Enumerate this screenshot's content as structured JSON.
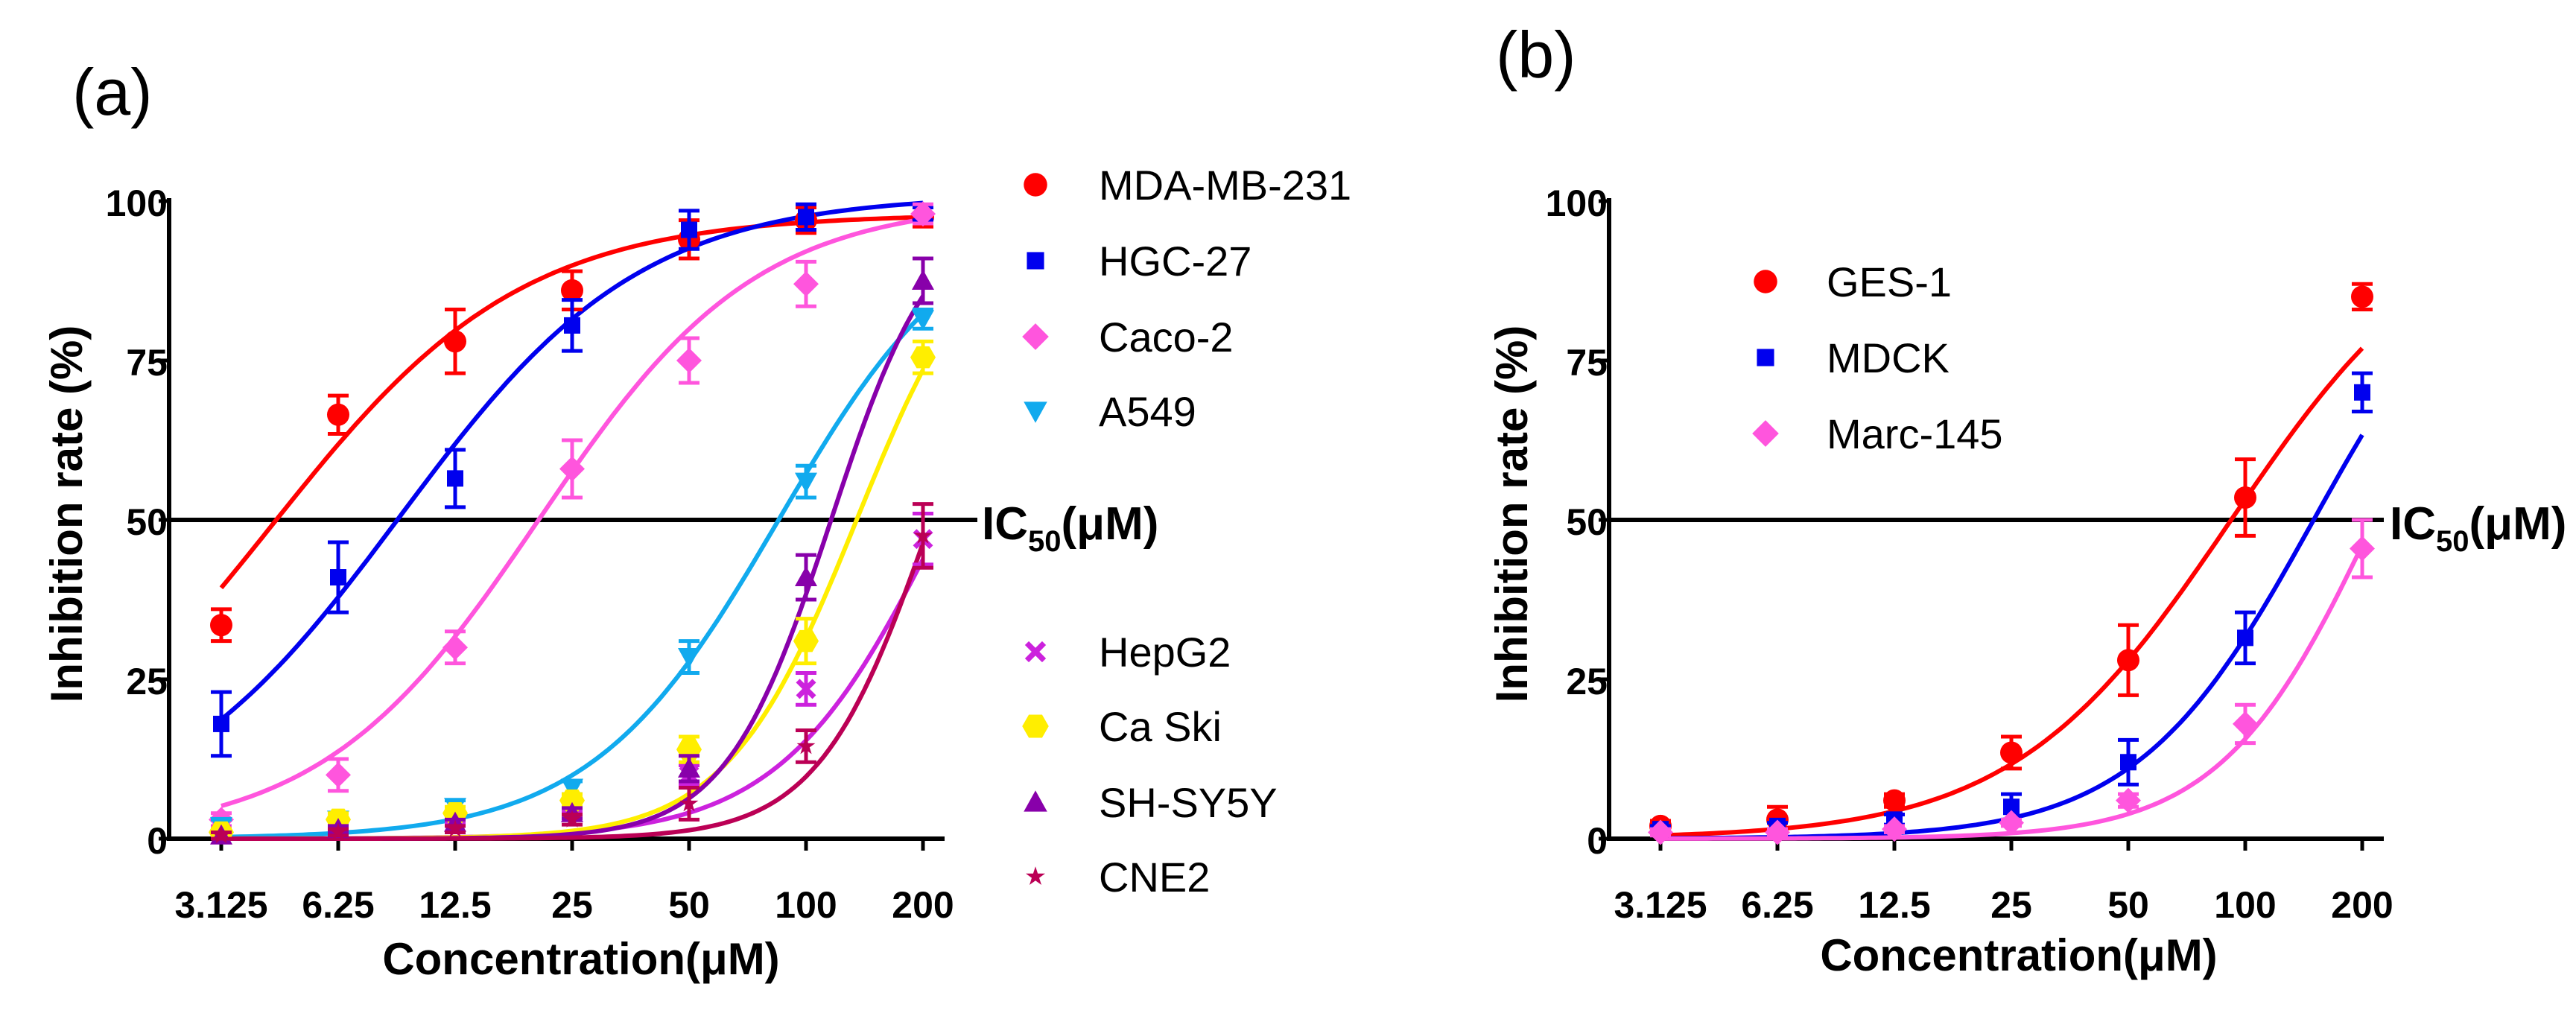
{
  "figure": {
    "ic50_prefix": "IC",
    "ic50_subscript": "50",
    "ic50_suffix": "(μM)"
  },
  "chart_data": [
    {
      "type": "line",
      "panel_label": "(a)",
      "xlabel": "Concentration(μM)",
      "ylabel": "Inhibition rate (%)",
      "x_scale": "log2",
      "categories": [
        "3.125",
        "6.25",
        "12.5",
        "25",
        "50",
        "100",
        "200"
      ],
      "x": [
        3.125,
        6.25,
        12.5,
        25,
        50,
        100,
        200
      ],
      "ylim": [
        0,
        100
      ],
      "yticks": [
        "0",
        "25",
        "50",
        "75",
        "100"
      ],
      "reference_line_y": 50,
      "series": [
        {
          "name": "MDA-MB-231",
          "color": "#ff0000",
          "marker": "circle",
          "values": [
            33.5,
            66.5,
            78,
            86,
            94,
            97,
            97.5
          ],
          "errors": [
            2.5,
            3,
            5,
            3,
            3,
            2,
            1.5
          ]
        },
        {
          "name": "HGC-27",
          "color": "#0000ee",
          "marker": "square",
          "values": [
            18,
            41,
            56.5,
            80.5,
            95.5,
            97.5,
            98
          ],
          "errors": [
            5,
            5.5,
            4.5,
            4,
            3,
            2,
            1
          ]
        },
        {
          "name": "Caco-2",
          "color": "#ff55dd",
          "marker": "diamond",
          "values": [
            3,
            10,
            30,
            58,
            75,
            87,
            98
          ],
          "errors": [
            1,
            2.5,
            2.5,
            4.5,
            3.5,
            3.5,
            1.5
          ]
        },
        {
          "name": "A549",
          "color": "#11aaee",
          "marker": "triangle-down",
          "values": [
            2,
            3,
            5,
            8,
            28.5,
            56,
            81.5
          ],
          "errors": [
            1,
            1,
            1,
            1,
            2.5,
            2.5,
            1.5
          ]
        },
        {
          "name": "HepG2",
          "color": "#cc22dd",
          "marker": "x",
          "values": [
            1,
            2,
            3,
            5,
            10,
            23.5,
            47
          ],
          "errors": [
            0.5,
            0.5,
            0.5,
            0.8,
            1.5,
            2.5,
            4
          ]
        },
        {
          "name": "Ca Ski",
          "color": "#ffee00",
          "marker": "hexagon",
          "values": [
            1,
            3,
            4,
            6,
            14,
            31,
            75.5
          ],
          "errors": [
            0.5,
            1,
            1,
            1,
            2,
            3.5,
            2.5
          ]
        },
        {
          "name": "SH-SY5Y",
          "color": "#8800aa",
          "marker": "triangle-up",
          "values": [
            0.5,
            1.5,
            2.5,
            4,
            11,
            41,
            87.5
          ],
          "errors": [
            0.5,
            0.5,
            0.5,
            0.8,
            2,
            3.5,
            3.5
          ]
        },
        {
          "name": "CNE2",
          "color": "#bb0055",
          "marker": "star",
          "values": [
            0.5,
            1,
            1.5,
            3,
            5.5,
            14.5,
            47.5
          ],
          "errors": [
            0.5,
            0.5,
            0.5,
            0.8,
            2.5,
            2.5,
            5
          ]
        }
      ],
      "fits": [
        {
          "name": "MDA-MB-231",
          "color": "#ff0000",
          "top": 98,
          "ec50": 4.2,
          "hill": 1.35
        },
        {
          "name": "HGC-27",
          "color": "#0000ee",
          "top": 101,
          "ec50": 9.0,
          "hill": 1.4
        },
        {
          "name": "Caco-2",
          "color": "#ff55dd",
          "top": 100,
          "ec50": 20.5,
          "hill": 1.55
        },
        {
          "name": "A549",
          "color": "#11aaee",
          "top": 100,
          "ec50": 85,
          "hill": 1.8
        },
        {
          "name": "HepG2",
          "color": "#cc22dd",
          "top": 100,
          "ec50": 225,
          "hill": 2.1
        },
        {
          "name": "Ca Ski",
          "color": "#ffee00",
          "top": 100,
          "ec50": 135,
          "hill": 2.6
        },
        {
          "name": "SH-SY5Y",
          "color": "#8800aa",
          "top": 100,
          "ec50": 116,
          "hill": 3.2
        },
        {
          "name": "CNE2",
          "color": "#bb0055",
          "top": 100,
          "ec50": 210,
          "hill": 3.0
        }
      ]
    },
    {
      "type": "line",
      "panel_label": "(b)",
      "xlabel": "Concentration(μM)",
      "ylabel": "Inhibition rate (%)",
      "x_scale": "log2",
      "categories": [
        "3.125",
        "6.25",
        "12.5",
        "25",
        "50",
        "100",
        "200"
      ],
      "x": [
        3.125,
        6.25,
        12.5,
        25,
        50,
        100,
        200
      ],
      "ylim": [
        0,
        100
      ],
      "yticks": [
        "0",
        "25",
        "50",
        "75",
        "100"
      ],
      "reference_line_y": 50,
      "series": [
        {
          "name": "GES-1",
          "color": "#ff0000",
          "marker": "circle",
          "values": [
            2,
            3,
            6,
            13.5,
            28,
            53.5,
            85
          ],
          "errors": [
            0.8,
            2,
            1,
            2.5,
            5.5,
            6,
            2
          ]
        },
        {
          "name": "MDCK",
          "color": "#0000ee",
          "marker": "square",
          "values": [
            1.5,
            2,
            3,
            5,
            12,
            31.5,
            70
          ],
          "errors": [
            0.5,
            0.5,
            0.8,
            2,
            3.5,
            4,
            3
          ]
        },
        {
          "name": "Marc-145",
          "color": "#ff55dd",
          "marker": "diamond",
          "values": [
            1,
            1,
            1.5,
            2.5,
            6,
            18,
            45.5
          ],
          "errors": [
            0.5,
            0.5,
            0.5,
            0.5,
            1,
            3,
            4.5
          ]
        }
      ],
      "fits": [
        {
          "name": "GES-1",
          "color": "#ff0000",
          "top": 100,
          "ec50": 92,
          "hill": 1.55
        },
        {
          "name": "MDCK",
          "color": "#0000ee",
          "top": 100,
          "ec50": 150,
          "hill": 1.9
        },
        {
          "name": "Marc-145",
          "color": "#ff55dd",
          "top": 100,
          "ec50": 215,
          "hill": 2.2
        }
      ]
    }
  ]
}
